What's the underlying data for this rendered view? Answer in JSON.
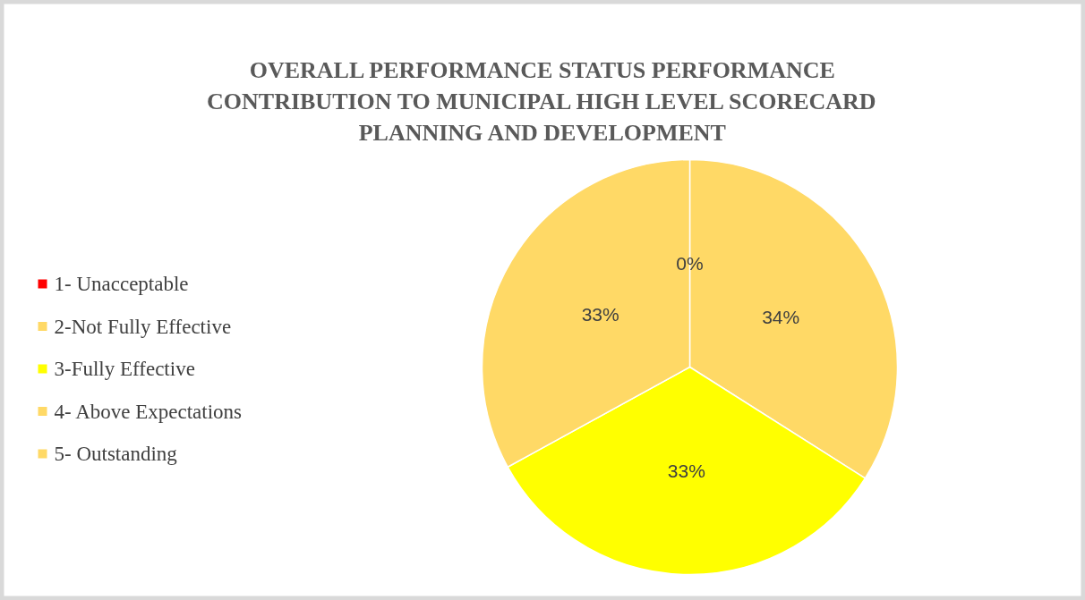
{
  "chart_data": {
    "type": "pie",
    "title": "OVERALL PERFORMANCE STATUS PERFORMANCE CONTRIBUTION TO MUNICIPAL HIGH LEVEL SCORECARD PLANNING AND DEVELOPMENT",
    "categories": [
      "1- Unacceptable",
      "2-Not Fully Effective",
      "3-Fully Effective",
      "4- Above Expectations",
      "5- Outstanding"
    ],
    "values": [
      0,
      34,
      33,
      33,
      0
    ],
    "colors": [
      "#ff0000",
      "#ffd966",
      "#ffff00",
      "#ffd966",
      "#ffd966"
    ],
    "value_labels": [
      "0%",
      "34%",
      "33%",
      "33%",
      null
    ],
    "legend": "left"
  }
}
